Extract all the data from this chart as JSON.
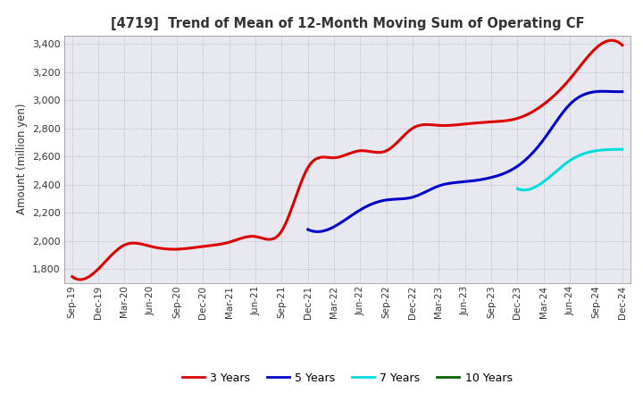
{
  "title": "[4719]  Trend of Mean of 12-Month Moving Sum of Operating CF",
  "ylabel": "Amount (million yen)",
  "background_color": "#ffffff",
  "plot_bg_color": "#e8e8f0",
  "grid_color": "#aaaaaa",
  "x_labels": [
    "Sep-19",
    "Dec-19",
    "Mar-20",
    "Jun-20",
    "Sep-20",
    "Dec-20",
    "Mar-21",
    "Jun-21",
    "Sep-21",
    "Dec-21",
    "Mar-22",
    "Jun-22",
    "Sep-22",
    "Dec-22",
    "Mar-23",
    "Jun-23",
    "Sep-23",
    "Dec-23",
    "Mar-24",
    "Jun-24",
    "Sep-24",
    "Dec-24"
  ],
  "ylim": [
    1700,
    3460
  ],
  "yticks": [
    1800,
    2000,
    2200,
    2400,
    2600,
    2800,
    3000,
    3200,
    3400
  ],
  "series": {
    "3 Years": {
      "color": "#dd0000",
      "x_indices": [
        0,
        1,
        2,
        3,
        4,
        5,
        6,
        7,
        8,
        9,
        10,
        11,
        12,
        13,
        14,
        15,
        16,
        17,
        18,
        19,
        20,
        21
      ],
      "values": [
        1745,
        1800,
        1970,
        1960,
        1940,
        1960,
        1990,
        2030,
        2070,
        2520,
        2590,
        2640,
        2640,
        2800,
        2820,
        2830,
        2845,
        2870,
        2970,
        3150,
        3370,
        3390
      ]
    },
    "5 Years": {
      "color": "#0000cc",
      "x_indices": [
        9,
        10,
        11,
        12,
        13,
        14,
        15,
        16,
        17,
        18,
        19,
        20,
        21
      ],
      "values": [
        2080,
        2100,
        2220,
        2290,
        2310,
        2390,
        2420,
        2450,
        2530,
        2720,
        2970,
        3060,
        3060
      ]
    },
    "7 Years": {
      "color": "#00dddd",
      "x_indices": [
        17,
        18,
        19,
        20,
        21
      ],
      "values": [
        2370,
        2420,
        2570,
        2640,
        2650
      ]
    },
    "10 Years": {
      "color": "#006400",
      "x_indices": [],
      "values": []
    }
  },
  "legend_colors": [
    "#dd0000",
    "#0000cc",
    "#00dddd",
    "#006400"
  ],
  "legend_labels": [
    "3 Years",
    "5 Years",
    "7 Years",
    "10 Years"
  ]
}
